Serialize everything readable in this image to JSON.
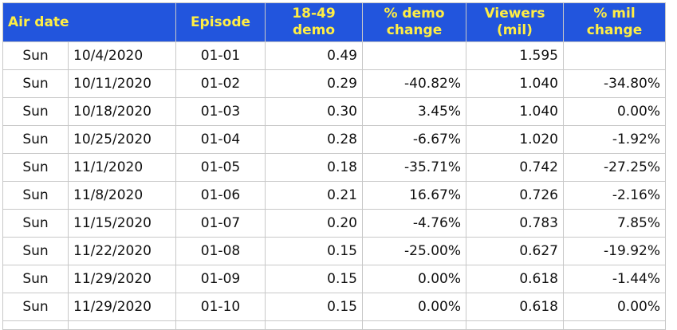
{
  "table": {
    "headers": {
      "air_date": "Air date",
      "episode": "Episode",
      "demo_line1": "18-49",
      "demo_line2": "demo",
      "demo_change_line1": "% demo",
      "demo_change_line2": "change",
      "viewers_line1": "Viewers",
      "viewers_line2": "(mil)",
      "mil_change_line1": "% mil",
      "mil_change_line2": "change"
    },
    "rows": [
      {
        "day": "Sun",
        "date": "10/4/2020",
        "episode": "01-01",
        "demo": "0.49",
        "demo_change": "",
        "demo_dir": "",
        "viewers": "1.595",
        "mil_change": "",
        "mil_dir": ""
      },
      {
        "day": "Sun",
        "date": "10/11/2020",
        "episode": "01-02",
        "demo": "0.29",
        "demo_change": "-40.82%",
        "demo_dir": "neg",
        "viewers": "1.040",
        "mil_change": "-34.80%",
        "mil_dir": "neg"
      },
      {
        "day": "Sun",
        "date": "10/18/2020",
        "episode": "01-03",
        "demo": "0.30",
        "demo_change": "3.45%",
        "demo_dir": "pos",
        "viewers": "1.040",
        "mil_change": "0.00%",
        "mil_dir": "pos"
      },
      {
        "day": "Sun",
        "date": "10/25/2020",
        "episode": "01-04",
        "demo": "0.28",
        "demo_change": "-6.67%",
        "demo_dir": "neg",
        "viewers": "1.020",
        "mil_change": "-1.92%",
        "mil_dir": "neg"
      },
      {
        "day": "Sun",
        "date": "11/1/2020",
        "episode": "01-05",
        "demo": "0.18",
        "demo_change": "-35.71%",
        "demo_dir": "neg",
        "viewers": "0.742",
        "mil_change": "-27.25%",
        "mil_dir": "neg"
      },
      {
        "day": "Sun",
        "date": "11/8/2020",
        "episode": "01-06",
        "demo": "0.21",
        "demo_change": "16.67%",
        "demo_dir": "pos",
        "viewers": "0.726",
        "mil_change": "-2.16%",
        "mil_dir": "neg"
      },
      {
        "day": "Sun",
        "date": "11/15/2020",
        "episode": "01-07",
        "demo": "0.20",
        "demo_change": "-4.76%",
        "demo_dir": "neg",
        "viewers": "0.783",
        "mil_change": "7.85%",
        "mil_dir": "pos"
      },
      {
        "day": "Sun",
        "date": "11/22/2020",
        "episode": "01-08",
        "demo": "0.15",
        "demo_change": "-25.00%",
        "demo_dir": "neg",
        "viewers": "0.627",
        "mil_change": "-19.92%",
        "mil_dir": "neg"
      },
      {
        "day": "Sun",
        "date": "11/29/2020",
        "episode": "01-09",
        "demo": "0.15",
        "demo_change": "0.00%",
        "demo_dir": "pos",
        "viewers": "0.618",
        "mil_change": "-1.44%",
        "mil_dir": "neg"
      },
      {
        "day": "Sun",
        "date": "11/29/2020",
        "episode": "01-10",
        "demo": "0.15",
        "demo_change": "0.00%",
        "demo_dir": "pos",
        "viewers": "0.618",
        "mil_change": "0.00%",
        "mil_dir": "pos"
      }
    ]
  },
  "colors": {
    "header_bg": "#2255dd",
    "header_text": "#ffee44",
    "negative": "#7a0b0b",
    "positive": "#0f5a0f",
    "grid": "#c8c8c8"
  }
}
